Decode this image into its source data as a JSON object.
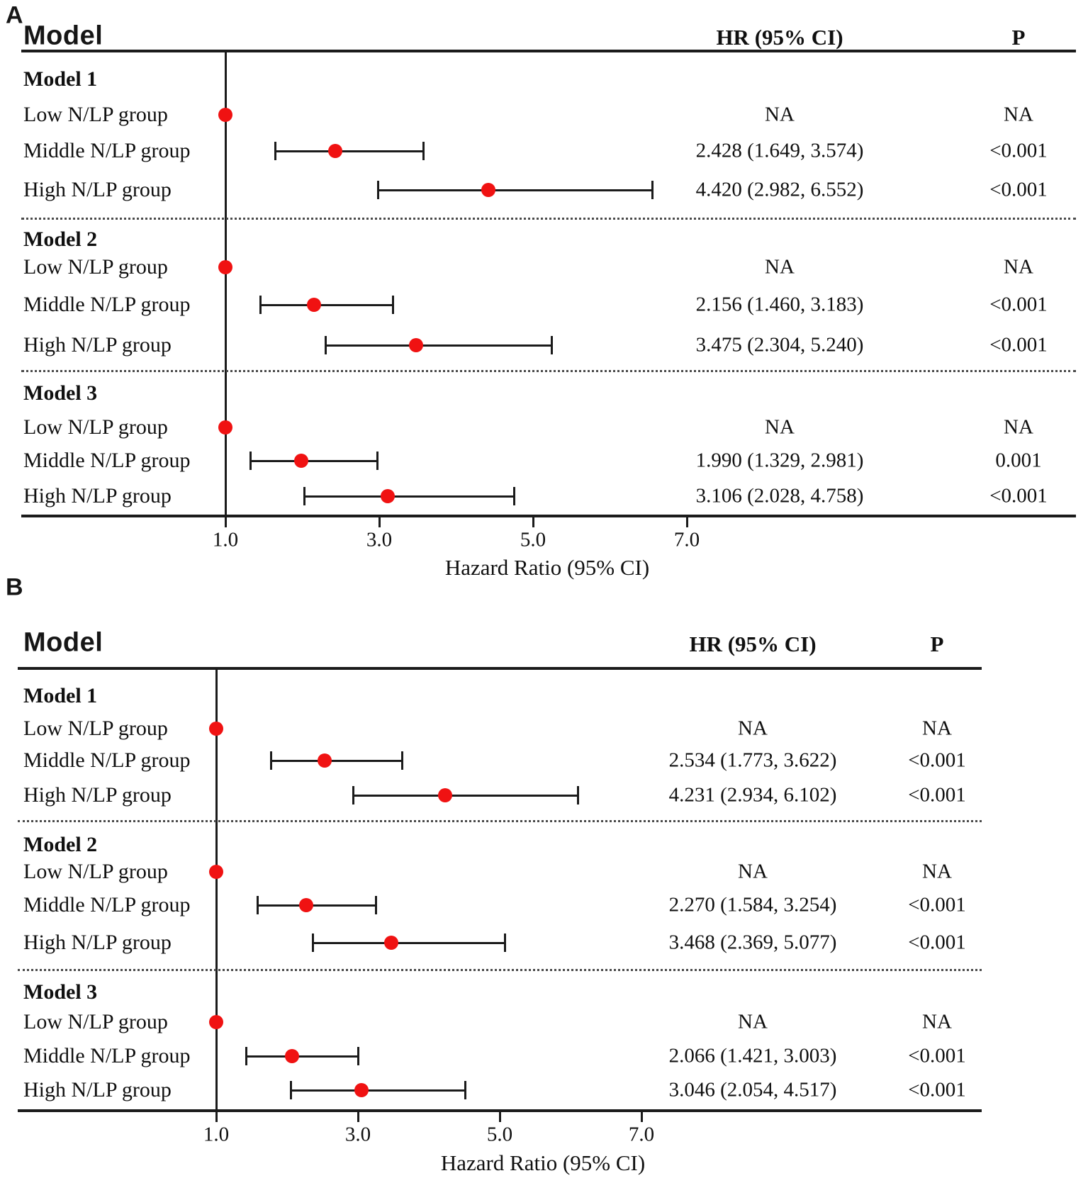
{
  "colors": {
    "marker": "#f01212",
    "line": "#1b1b1b",
    "text": "#101010",
    "background": "#ffffff"
  },
  "chart_data": [
    {
      "type": "scatter",
      "subtype": "forest-plot",
      "panel": "A",
      "model_header": "Model",
      "hr_header": "HR (95% CI)",
      "p_header": "P",
      "axis": {
        "title": "Hazard Ratio (95% CI)",
        "reference_value": 1.0,
        "xlim": [
          1.0,
          7.0
        ],
        "ticks": [
          {
            "value": 1.0,
            "label": "1.0"
          },
          {
            "value": 3.0,
            "label": "3.0"
          },
          {
            "value": 5.0,
            "label": "5.0"
          },
          {
            "value": 7.0,
            "label": "7.0"
          }
        ]
      },
      "groups": [
        {
          "title": "Model 1",
          "rows": [
            {
              "label": "Low N/LP group",
              "hr": 1.0,
              "lo": null,
              "hi": null,
              "hr_text": "NA",
              "p_text": "NA"
            },
            {
              "label": "Middle N/LP group",
              "hr": 2.428,
              "lo": 1.649,
              "hi": 3.574,
              "hr_text": "2.428 (1.649, 3.574)",
              "p_text": "<0.001"
            },
            {
              "label": "High N/LP group",
              "hr": 4.42,
              "lo": 2.982,
              "hi": 6.552,
              "hr_text": "4.420 (2.982, 6.552)",
              "p_text": "<0.001"
            }
          ]
        },
        {
          "title": "Model 2",
          "rows": [
            {
              "label": "Low N/LP group",
              "hr": 1.0,
              "lo": null,
              "hi": null,
              "hr_text": "NA",
              "p_text": "NA"
            },
            {
              "label": "Middle N/LP group",
              "hr": 2.156,
              "lo": 1.46,
              "hi": 3.183,
              "hr_text": "2.156 (1.460, 3.183)",
              "p_text": "<0.001"
            },
            {
              "label": "High N/LP group",
              "hr": 3.475,
              "lo": 2.304,
              "hi": 5.24,
              "hr_text": "3.475 (2.304, 5.240)",
              "p_text": "<0.001"
            }
          ]
        },
        {
          "title": "Model 3",
          "rows": [
            {
              "label": "Low N/LP group",
              "hr": 1.0,
              "lo": null,
              "hi": null,
              "hr_text": "NA",
              "p_text": "NA"
            },
            {
              "label": "Middle N/LP group",
              "hr": 1.99,
              "lo": 1.329,
              "hi": 2.981,
              "hr_text": "1.990 (1.329, 2.981)",
              "p_text": "0.001"
            },
            {
              "label": "High N/LP group",
              "hr": 3.106,
              "lo": 2.028,
              "hi": 4.758,
              "hr_text": "3.106 (2.028, 4.758)",
              "p_text": "<0.001"
            }
          ]
        }
      ]
    },
    {
      "type": "scatter",
      "subtype": "forest-plot",
      "panel": "B",
      "model_header": "Model",
      "hr_header": "HR (95% CI)",
      "p_header": "P",
      "axis": {
        "title": "Hazard Ratio (95% CI)",
        "reference_value": 1.0,
        "xlim": [
          1.0,
          7.0
        ],
        "ticks": [
          {
            "value": 1.0,
            "label": "1.0"
          },
          {
            "value": 3.0,
            "label": "3.0"
          },
          {
            "value": 5.0,
            "label": "5.0"
          },
          {
            "value": 7.0,
            "label": "7.0"
          }
        ]
      },
      "groups": [
        {
          "title": "Model 1",
          "rows": [
            {
              "label": "Low N/LP group",
              "hr": 1.0,
              "lo": null,
              "hi": null,
              "hr_text": "NA",
              "p_text": "NA"
            },
            {
              "label": "Middle N/LP group",
              "hr": 2.534,
              "lo": 1.773,
              "hi": 3.622,
              "hr_text": "2.534 (1.773, 3.622)",
              "p_text": "<0.001"
            },
            {
              "label": "High N/LP group",
              "hr": 4.231,
              "lo": 2.934,
              "hi": 6.102,
              "hr_text": "4.231 (2.934, 6.102)",
              "p_text": "<0.001"
            }
          ]
        },
        {
          "title": "Model 2",
          "rows": [
            {
              "label": "Low N/LP group",
              "hr": 1.0,
              "lo": null,
              "hi": null,
              "hr_text": "NA",
              "p_text": "NA"
            },
            {
              "label": "Middle N/LP group",
              "hr": 2.27,
              "lo": 1.584,
              "hi": 3.254,
              "hr_text": "2.270 (1.584, 3.254)",
              "p_text": "<0.001"
            },
            {
              "label": "High N/LP group",
              "hr": 3.468,
              "lo": 2.369,
              "hi": 5.077,
              "hr_text": "3.468 (2.369, 5.077)",
              "p_text": "<0.001"
            }
          ]
        },
        {
          "title": "Model 3",
          "rows": [
            {
              "label": "Low N/LP group",
              "hr": 1.0,
              "lo": null,
              "hi": null,
              "hr_text": "NA",
              "p_text": "NA"
            },
            {
              "label": "Middle N/LP group",
              "hr": 2.066,
              "lo": 1.421,
              "hi": 3.003,
              "hr_text": "2.066 (1.421, 3.003)",
              "p_text": "<0.001"
            },
            {
              "label": "High N/LP group",
              "hr": 3.046,
              "lo": 2.054,
              "hi": 4.517,
              "hr_text": "3.046 (2.054, 4.517)",
              "p_text": "<0.001"
            }
          ]
        }
      ]
    }
  ]
}
